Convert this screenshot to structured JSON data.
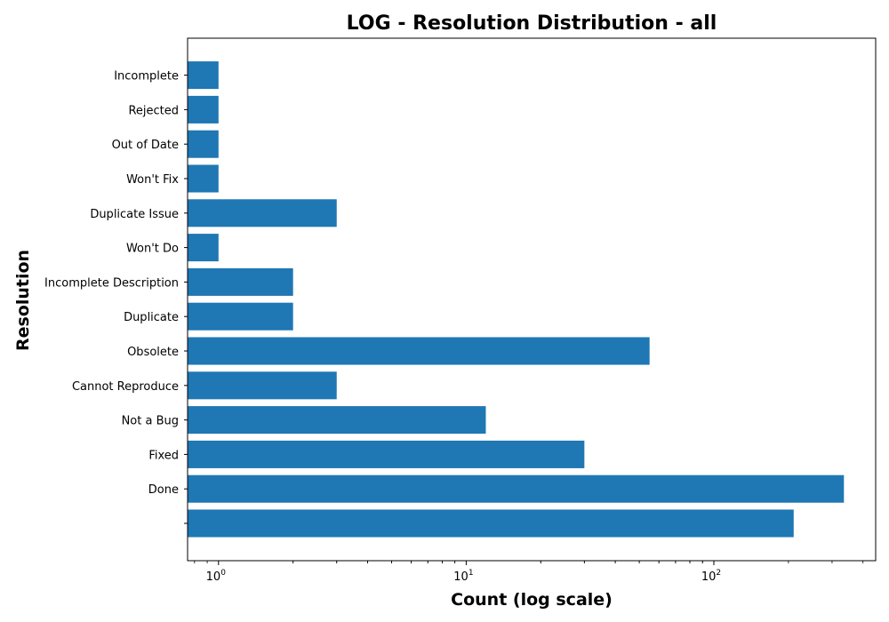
{
  "chart_data": {
    "type": "bar",
    "orientation": "horizontal",
    "title": "LOG - Resolution Distribution - all",
    "xlabel": "Count (log scale)",
    "ylabel": "Resolution",
    "x_scale": "log",
    "xlim": [
      0.75,
      450
    ],
    "x_ticks": [
      {
        "value": 1,
        "base": "10",
        "exp": "0"
      },
      {
        "value": 10,
        "base": "10",
        "exp": "1"
      },
      {
        "value": 100,
        "base": "10",
        "exp": "2"
      }
    ],
    "categories": [
      "",
      "Done",
      "Fixed",
      "Not a Bug",
      "Cannot Reproduce",
      "Obsolete",
      "Duplicate",
      "Incomplete Description",
      "Won't Do",
      "Duplicate Issue",
      "Won't Fix",
      "Out of Date",
      "Rejected",
      "Incomplete"
    ],
    "values": [
      210,
      335,
      30,
      12,
      3,
      55,
      2,
      2,
      1,
      3,
      1,
      1,
      1,
      1
    ],
    "bar_color": "#1f77b4",
    "grid": false,
    "legend": "none"
  }
}
